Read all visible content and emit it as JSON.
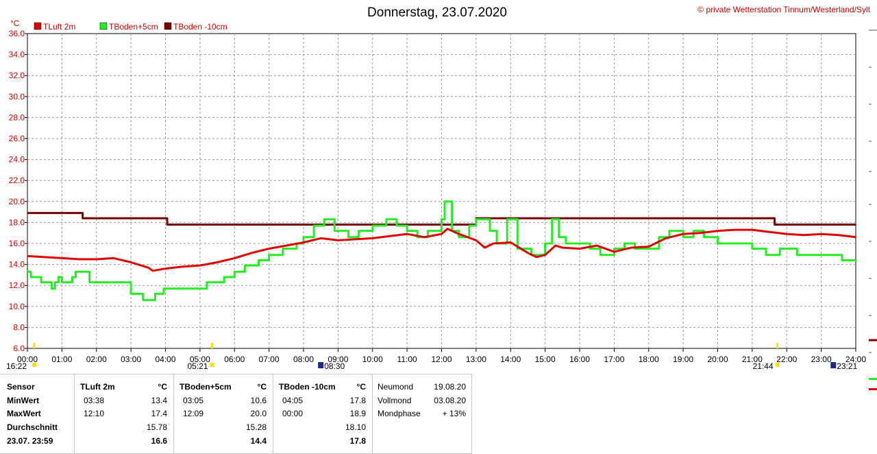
{
  "title": "Donnerstag, 23.07.2020",
  "copyright": "© private Wetterstation Tinnum/Westerland/Sylt",
  "chart_data": {
    "type": "line",
    "ylabel": "°C",
    "ylim": [
      6.0,
      36.0
    ],
    "yticks": [
      "6.0",
      "8.0",
      "10.0",
      "12.0",
      "14.0",
      "16.0",
      "18.0",
      "20.0",
      "22.0",
      "24.0",
      "26.0",
      "28.0",
      "30.0",
      "32.0",
      "34.0",
      "36.0"
    ],
    "xlim": [
      0,
      24
    ],
    "xticks": [
      "00:00",
      "01:00",
      "02:00",
      "03:00",
      "04:00",
      "05:00",
      "06:00",
      "07:00",
      "08:00",
      "09:00",
      "10:00",
      "11:00",
      "12:00",
      "13:00",
      "14:00",
      "15:00",
      "16:00",
      "17:00",
      "18:00",
      "19:00",
      "20:00",
      "21:00",
      "22:00",
      "23:00",
      "24:00"
    ],
    "grid": true,
    "legend_position": "top-left",
    "series": [
      {
        "name": "TLuft 2m",
        "color": "#e00000",
        "step": false,
        "x": [
          0,
          0.5,
          1,
          1.5,
          2,
          2.5,
          3,
          3.5,
          3.63,
          4,
          4.5,
          5,
          5.5,
          6,
          6.5,
          7,
          7.5,
          8,
          8.5,
          9,
          9.5,
          10,
          10.5,
          11,
          11.5,
          12,
          12.17,
          12.5,
          13,
          13.25,
          13.5,
          14,
          14.5,
          14.75,
          15,
          15.3,
          15.5,
          16,
          16.5,
          17,
          17.5,
          18,
          18.5,
          19,
          19.5,
          20,
          20.5,
          21,
          21.5,
          22,
          22.5,
          23,
          23.5,
          24
        ],
        "y": [
          14.8,
          14.7,
          14.6,
          14.5,
          14.5,
          14.6,
          14.2,
          13.7,
          13.4,
          13.6,
          13.8,
          13.9,
          14.2,
          14.6,
          15.1,
          15.5,
          15.8,
          16.1,
          16.5,
          16.3,
          16.4,
          16.5,
          16.7,
          16.9,
          16.6,
          16.9,
          17.4,
          16.9,
          16.3,
          15.6,
          16.0,
          16.1,
          15.1,
          14.7,
          14.9,
          15.8,
          15.6,
          15.5,
          15.8,
          15.2,
          15.6,
          15.7,
          16.5,
          16.9,
          17.0,
          17.2,
          17.3,
          17.3,
          17.1,
          16.9,
          16.8,
          16.9,
          16.8,
          16.6
        ]
      },
      {
        "name": "TBoden+5cm",
        "color": "#22ee22",
        "step": true,
        "x": [
          0,
          0.1,
          0.4,
          0.7,
          0.8,
          0.9,
          1.0,
          1.3,
          1.4,
          1.8,
          2.6,
          3.0,
          3.35,
          3.7,
          3.95,
          4.5,
          5.2,
          5.7,
          6.0,
          6.3,
          6.7,
          7.0,
          7.4,
          7.6,
          7.8,
          8.0,
          8.3,
          8.6,
          8.9,
          9.3,
          9.6,
          10.0,
          10.4,
          10.7,
          11.0,
          11.3,
          11.6,
          12.0,
          12.09,
          12.3,
          12.5,
          12.8,
          13.0,
          13.4,
          13.6,
          13.9,
          14.2,
          14.6,
          14.8,
          15.0,
          15.2,
          15.4,
          15.6,
          16.0,
          16.3,
          16.6,
          17.0,
          17.3,
          17.6,
          18.0,
          18.3,
          18.6,
          19.0,
          19.3,
          19.6,
          20.0,
          20.5,
          21.0,
          21.4,
          21.8,
          22.3,
          23.0,
          23.6,
          24.0
        ],
        "y": [
          13.3,
          12.8,
          12.3,
          11.7,
          12.3,
          12.8,
          12.3,
          12.8,
          13.3,
          12.3,
          12.3,
          11.2,
          10.6,
          11.2,
          11.7,
          11.7,
          12.3,
          12.8,
          13.3,
          13.9,
          14.4,
          14.9,
          15.5,
          15.5,
          16.0,
          16.6,
          17.7,
          18.3,
          17.2,
          16.6,
          17.2,
          17.7,
          18.3,
          17.7,
          17.2,
          16.6,
          17.2,
          18.3,
          20.0,
          17.2,
          16.6,
          17.7,
          18.3,
          17.2,
          16.0,
          18.3,
          15.5,
          14.9,
          14.9,
          16.0,
          18.3,
          16.6,
          16.0,
          16.0,
          15.5,
          14.9,
          15.5,
          16.0,
          15.5,
          15.5,
          16.6,
          17.2,
          16.6,
          17.2,
          16.6,
          16.0,
          16.0,
          15.5,
          14.9,
          15.5,
          14.9,
          14.9,
          14.4,
          14.4
        ]
      },
      {
        "name": "TBoden -10cm",
        "color": "#7a0000",
        "step": true,
        "x": [
          0,
          1.6,
          4.05,
          13.0,
          21.65,
          24.0
        ],
        "y": [
          18.9,
          18.4,
          17.8,
          18.4,
          17.8,
          17.8
        ]
      }
    ],
    "markers": [
      {
        "label": "16:22",
        "x": 0.2,
        "icon": "sunset-marker-icon"
      },
      {
        "label": "05:21",
        "x": 5.35,
        "icon": "sunrise-marker-icon"
      },
      {
        "label": "08:30",
        "x": 8.5,
        "icon": "moonrise-marker-icon"
      },
      {
        "label": "21:44",
        "x": 21.73,
        "icon": "sunset-marker-icon"
      },
      {
        "label": "23:21",
        "x": 23.35,
        "icon": "moonset-marker-icon"
      }
    ]
  },
  "stats": {
    "headers": {
      "sensor": "Sensor",
      "luft": "TLuft 2m",
      "boden5": "TBoden+5cm",
      "boden10": "TBoden -10cm",
      "unit": "°C"
    },
    "rows": {
      "min": "MinWert",
      "max": "MaxWert",
      "avg": "Durchschnitt",
      "cur": "23.07. 23:59"
    },
    "luft": {
      "min_time": "03:38",
      "min": "13.4",
      "max_time": "12:10",
      "max": "17.4",
      "avg": "15.78",
      "cur": "16.6"
    },
    "boden5": {
      "min_time": "03:05",
      "min": "10.6",
      "max_time": "12:09",
      "max": "20.0",
      "avg": "15.28",
      "cur": "14.4"
    },
    "boden10": {
      "min_time": "04:05",
      "min": "17.8",
      "max_time": "00:00",
      "max": "18.9",
      "avg": "18.10",
      "cur": "17.8"
    },
    "moon": {
      "new_label": "Neumond",
      "new_date": "19.08.20",
      "full_label": "Vollmond",
      "full_date": "03.08.20",
      "phase_label": "Mondphase",
      "phase_value": "+ 13%"
    }
  }
}
